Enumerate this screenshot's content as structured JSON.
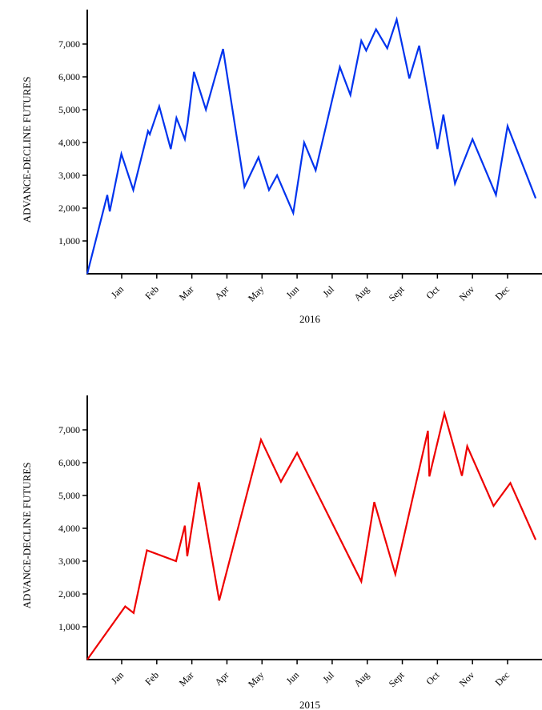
{
  "chart_data": [
    {
      "type": "line",
      "xlabel": "2016",
      "ylabel": "ADVANCE-DECLINE FUTURES",
      "ylim": [
        0,
        8000
      ],
      "y_ticks": [
        1000,
        2000,
        3000,
        4000,
        5000,
        6000,
        7000
      ],
      "y_tick_labels": [
        "1,000",
        "2,000",
        "3,000",
        "4,000",
        "5,000",
        "6,000",
        "7,000"
      ],
      "x_range": [
        0,
        12.8
      ],
      "x_ticks": [
        1,
        2,
        3,
        4,
        5,
        6,
        7,
        8,
        9,
        10,
        11,
        12
      ],
      "x_tick_labels": [
        "Jan",
        "Feb",
        "Mar",
        "Apr",
        "May",
        "Jun",
        "Jul",
        "Aug",
        "Sept",
        "Oct",
        "Nov",
        "Dec"
      ],
      "series": [
        {
          "color": "#0033ee",
          "x": [
            0.0,
            0.59,
            0.66,
            0.99,
            1.33,
            1.75,
            1.8,
            2.07,
            2.4,
            2.56,
            2.8,
            2.88,
            3.06,
            3.4,
            3.89,
            4.5,
            4.9,
            5.2,
            5.43,
            5.89,
            6.2,
            6.53,
            7.22,
            7.52,
            7.83,
            7.97,
            8.25,
            8.57,
            8.84,
            9.2,
            9.48,
            10.0,
            10.17,
            10.5,
            11.0,
            11.67,
            12.0,
            12.8
          ],
          "y": [
            0,
            2400,
            1900,
            3650,
            2550,
            4350,
            4250,
            5100,
            3800,
            4750,
            4100,
            4600,
            6150,
            5000,
            6850,
            2650,
            3550,
            2550,
            3000,
            1850,
            4000,
            3150,
            6300,
            5450,
            7100,
            6800,
            7450,
            6870,
            7750,
            5950,
            6950,
            3800,
            4850,
            2750,
            4100,
            2400,
            4500,
            2300
          ]
        }
      ]
    },
    {
      "type": "line",
      "xlabel": "2015",
      "ylabel": "ADVANCE-DECLINE FUTURES",
      "ylim": [
        0,
        8000
      ],
      "y_ticks": [
        1000,
        2000,
        3000,
        4000,
        5000,
        6000,
        7000
      ],
      "y_tick_labels": [
        "1,000",
        "2,000",
        "3,000",
        "4,000",
        "5,000",
        "6,000",
        "7,000"
      ],
      "x_range": [
        0,
        12.8
      ],
      "x_ticks": [
        1,
        2,
        3,
        4,
        5,
        6,
        7,
        8,
        9,
        10,
        11,
        12
      ],
      "x_tick_labels": [
        "Jan",
        "Feb",
        "Mar",
        "Apr",
        "May",
        "Jun",
        "Jul",
        "Aug",
        "Sept",
        "Oct",
        "Nov",
        "Dec"
      ],
      "series": [
        {
          "color": "#ee0000",
          "x": [
            0.0,
            1.1,
            1.34,
            1.72,
            2.55,
            2.8,
            2.87,
            3.2,
            3.78,
            4.97,
            5.54,
            6.0,
            7.83,
            8.2,
            8.8,
            9.73,
            9.77,
            10.2,
            10.7,
            10.85,
            11.6,
            12.08,
            12.8
          ],
          "y": [
            0,
            1620,
            1420,
            3330,
            3000,
            4080,
            3150,
            5400,
            1800,
            6700,
            5420,
            6300,
            2380,
            4800,
            2600,
            6970,
            5580,
            7500,
            5600,
            6500,
            4680,
            5380,
            3650
          ]
        }
      ]
    }
  ]
}
